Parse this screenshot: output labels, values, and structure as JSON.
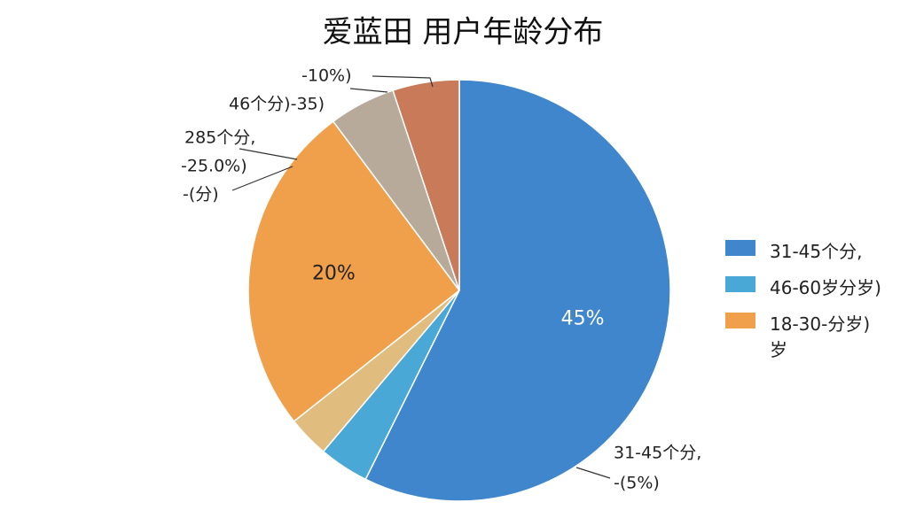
{
  "chart_data": {
    "type": "pie",
    "title": "爱蓝田  用户年龄分布",
    "categories": [
      "31-45个分,",
      "46-60岁分岁)",
      null,
      "18-30-分岁) 岁",
      null,
      null
    ],
    "values": [
      45,
      3,
      2.5,
      20,
      4,
      4
    ],
    "value_labels": [
      "45%",
      null,
      null,
      "20%",
      null,
      null
    ],
    "colors": [
      "#3f86cc",
      "#4aa8d6",
      "#e0bd7e",
      "#f0a04a",
      "#b7aa9b",
      "#c97a58"
    ],
    "annotations": [
      "-10%)",
      "46个分)-35)",
      "285个分,",
      "-25.0%)",
      "-(分)",
      "31-45个分,",
      "-(5%)"
    ]
  }
}
